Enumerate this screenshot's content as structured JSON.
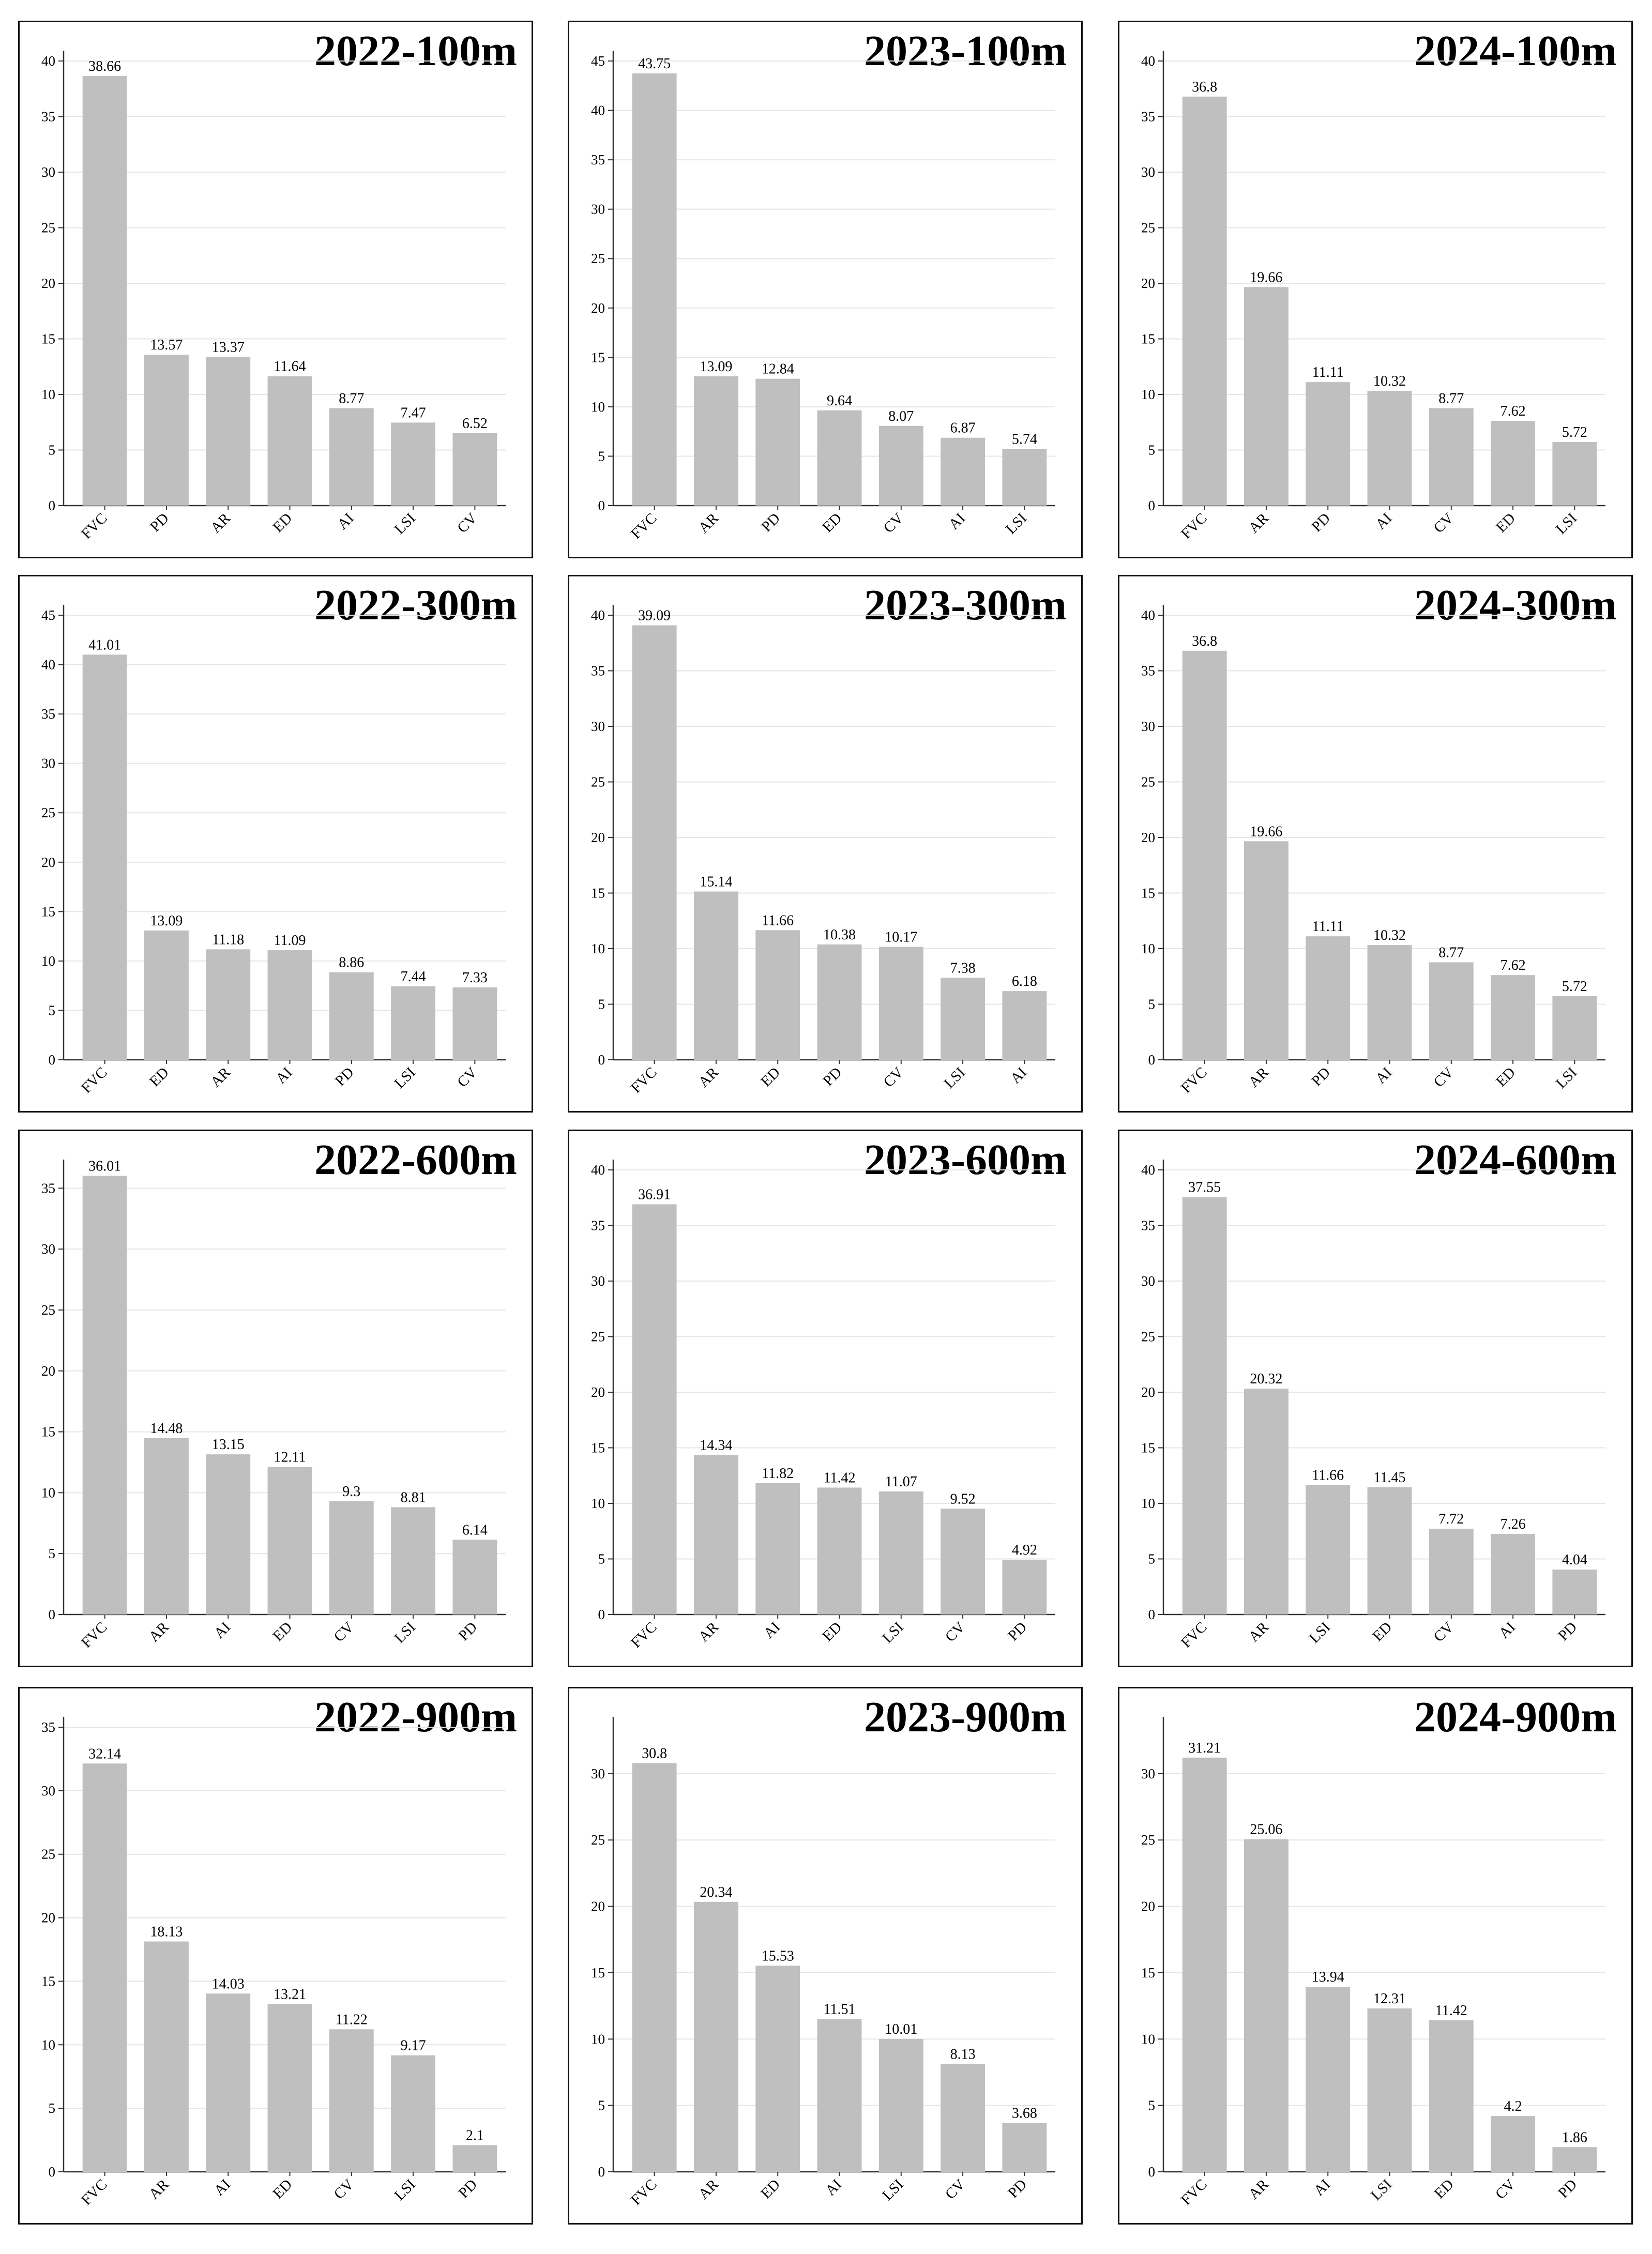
{
  "colors": {
    "bar": "#bfbfbf",
    "axis": "#333333",
    "grid": "#e6e6e6",
    "frame": "#111111",
    "text": "#000000"
  },
  "chart_data": [
    {
      "type": "bar",
      "title": "2022-100m",
      "categories": [
        "FVC",
        "PD",
        "AR",
        "ED",
        "AI",
        "LSI",
        "CV"
      ],
      "values": [
        38.66,
        13.57,
        13.37,
        11.64,
        8.77,
        7.47,
        6.52
      ],
      "ylim": [
        0,
        40
      ],
      "yticks": [
        0,
        5,
        10,
        15,
        20,
        25,
        30,
        35,
        40
      ],
      "grid": true
    },
    {
      "type": "bar",
      "title": "2023-100m",
      "categories": [
        "FVC",
        "AR",
        "PD",
        "ED",
        "CV",
        "AI",
        "LSI"
      ],
      "values": [
        43.75,
        13.09,
        12.84,
        9.64,
        8.07,
        6.87,
        5.74
      ],
      "ylim": [
        0,
        45
      ],
      "yticks": [
        0,
        5,
        10,
        15,
        20,
        25,
        30,
        35,
        40,
        45
      ],
      "grid": true
    },
    {
      "type": "bar",
      "title": "2024-100m",
      "categories": [
        "FVC",
        "AR",
        "PD",
        "AI",
        "CV",
        "ED",
        "LSI"
      ],
      "values": [
        36.8,
        19.66,
        11.11,
        10.32,
        8.77,
        7.62,
        5.72
      ],
      "ylim": [
        0,
        40
      ],
      "yticks": [
        0,
        5,
        10,
        15,
        20,
        25,
        30,
        35,
        40
      ],
      "grid": true
    },
    {
      "type": "bar",
      "title": "2022-300m",
      "categories": [
        "FVC",
        "ED",
        "AR",
        "AI",
        "PD",
        "LSI",
        "CV"
      ],
      "values": [
        41.01,
        13.09,
        11.18,
        11.09,
        8.86,
        7.44,
        7.33
      ],
      "ylim": [
        0,
        45
      ],
      "yticks": [
        0,
        5,
        10,
        15,
        20,
        25,
        30,
        35,
        40,
        45
      ],
      "grid": true
    },
    {
      "type": "bar",
      "title": "2023-300m",
      "categories": [
        "FVC",
        "AR",
        "ED",
        "PD",
        "CV",
        "LSI",
        "AI"
      ],
      "values": [
        39.09,
        15.14,
        11.66,
        10.38,
        10.17,
        7.38,
        6.18
      ],
      "ylim": [
        0,
        40
      ],
      "yticks": [
        0,
        5,
        10,
        15,
        20,
        25,
        30,
        35,
        40
      ],
      "grid": true
    },
    {
      "type": "bar",
      "title": "2024-300m",
      "categories": [
        "FVC",
        "AR",
        "PD",
        "AI",
        "CV",
        "ED",
        "LSI"
      ],
      "values": [
        36.8,
        19.66,
        11.11,
        10.32,
        8.77,
        7.62,
        5.72
      ],
      "ylim": [
        0,
        40
      ],
      "yticks": [
        0,
        5,
        10,
        15,
        20,
        25,
        30,
        35,
        40
      ],
      "grid": true
    },
    {
      "type": "bar",
      "title": "2022-600m",
      "categories": [
        "FVC",
        "AR",
        "AI",
        "ED",
        "CV",
        "LSI",
        "PD"
      ],
      "values": [
        36.01,
        14.48,
        13.15,
        12.11,
        9.3,
        8.81,
        6.14
      ],
      "ylim": [
        0,
        36.5
      ],
      "yticks": [
        0,
        5,
        10,
        15,
        20,
        25,
        30,
        35
      ],
      "grid": true
    },
    {
      "type": "bar",
      "title": "2023-600m",
      "categories": [
        "FVC",
        "AR",
        "AI",
        "ED",
        "LSI",
        "CV",
        "PD"
      ],
      "values": [
        36.91,
        14.34,
        11.82,
        11.42,
        11.07,
        9.52,
        4.92
      ],
      "ylim": [
        0,
        40
      ],
      "yticks": [
        0,
        5,
        10,
        15,
        20,
        25,
        30,
        35,
        40
      ],
      "grid": true
    },
    {
      "type": "bar",
      "title": "2024-600m",
      "categories": [
        "FVC",
        "AR",
        "LSI",
        "ED",
        "CV",
        "AI",
        "PD"
      ],
      "values": [
        37.55,
        20.32,
        11.66,
        11.45,
        7.72,
        7.26,
        4.04
      ],
      "ylim": [
        0,
        40
      ],
      "yticks": [
        0,
        5,
        10,
        15,
        20,
        25,
        30,
        35,
        40
      ],
      "grid": true
    },
    {
      "type": "bar",
      "title": "2022-900m",
      "categories": [
        "FVC",
        "AR",
        "AI",
        "ED",
        "CV",
        "LSI",
        "PD"
      ],
      "values": [
        32.14,
        18.13,
        14.03,
        13.21,
        11.22,
        9.17,
        2.1
      ],
      "ylim": [
        0,
        35
      ],
      "yticks": [
        0,
        5,
        10,
        15,
        20,
        25,
        30,
        35
      ],
      "grid": true
    },
    {
      "type": "bar",
      "title": "2023-900m",
      "categories": [
        "FVC",
        "AR",
        "ED",
        "AI",
        "LSI",
        "CV",
        "PD"
      ],
      "values": [
        30.8,
        20.34,
        15.53,
        11.51,
        10.01,
        8.13,
        3.68
      ],
      "ylim": [
        0,
        33.5
      ],
      "yticks": [
        0,
        5,
        10,
        15,
        20,
        25,
        30
      ],
      "grid": true
    },
    {
      "type": "bar",
      "title": "2024-900m",
      "categories": [
        "FVC",
        "AR",
        "AI",
        "LSI",
        "ED",
        "CV",
        "PD"
      ],
      "values": [
        31.21,
        25.06,
        13.94,
        12.31,
        11.42,
        4.2,
        1.86
      ],
      "ylim": [
        0,
        33.5
      ],
      "yticks": [
        0,
        5,
        10,
        15,
        20,
        25,
        30
      ],
      "grid": true
    }
  ]
}
